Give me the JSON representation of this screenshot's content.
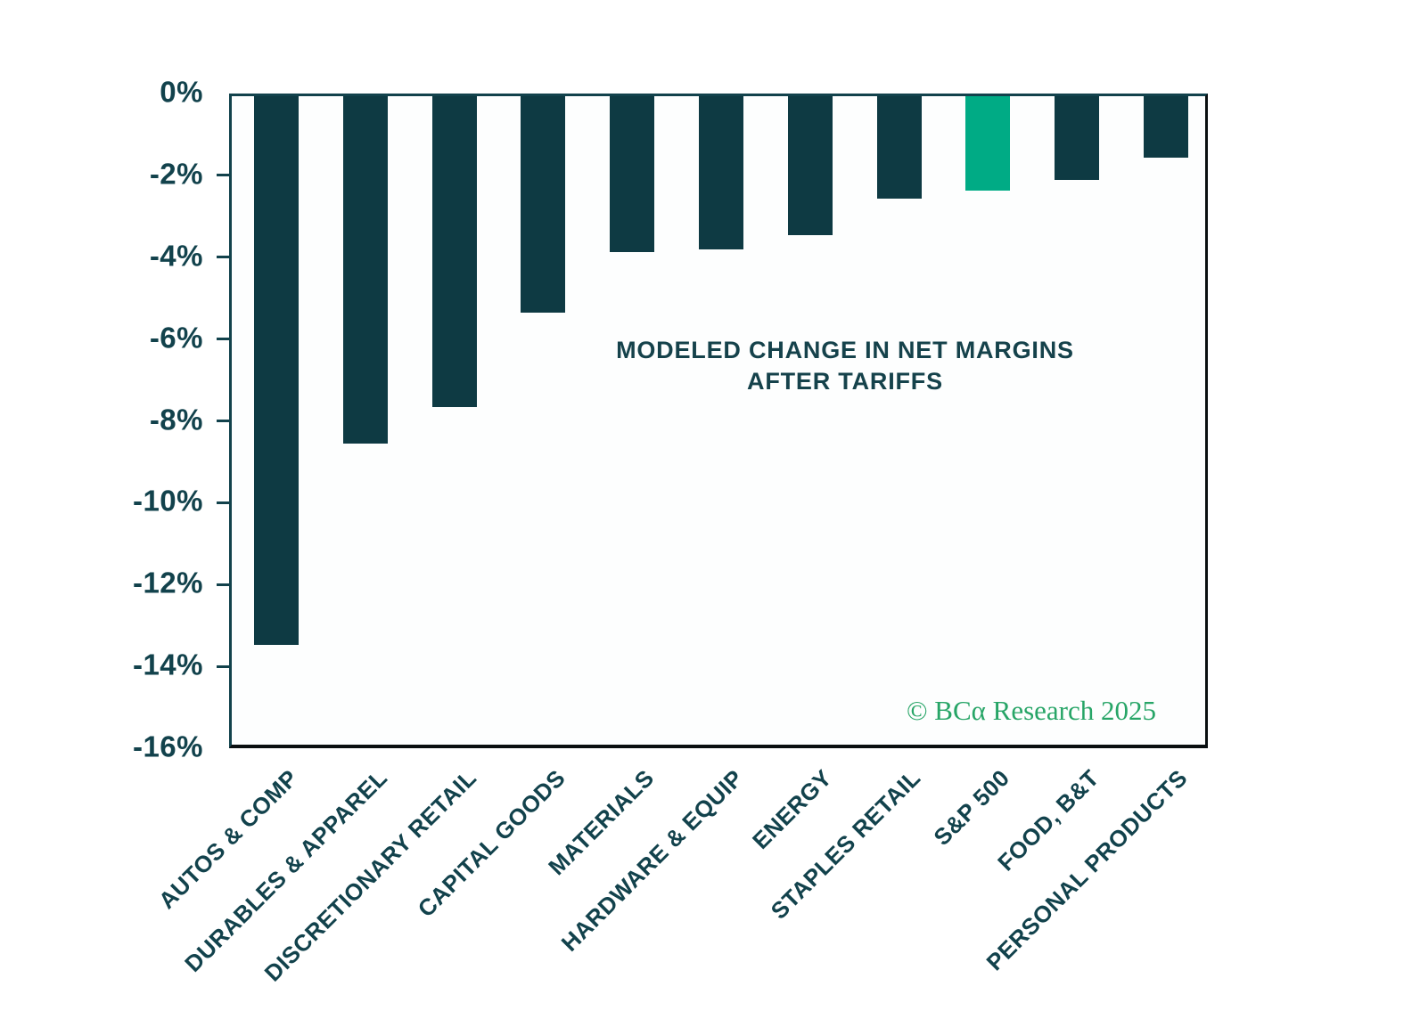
{
  "chart_data": {
    "type": "bar",
    "title_line1": "MODELED CHANGE IN NET MARGINS",
    "title_line2": "AFTER TARIFFS",
    "categories": [
      "AUTOS & COMP",
      "DURABLES & APPAREL",
      "DISCRETIONARY RETAIL",
      "CAPITAL GOODS",
      "MATERIALS",
      "HARDWARE & EQUIP",
      "ENERGY",
      "STAPLES RETAIL",
      "S&P 500",
      "FOOD, B&T",
      "PERSONAL PRODUCTS"
    ],
    "values": [
      -13.4,
      -8.5,
      -7.6,
      -5.3,
      -3.8,
      -3.75,
      -3.4,
      -2.5,
      -2.3,
      -2.05,
      -1.5
    ],
    "highlight_category": "S&P 500",
    "bar_color": "#0e3a43",
    "highlight_color": "#00ab85",
    "text_color": "#12424c",
    "ylim": [
      -16,
      0
    ],
    "ytick_step": 2,
    "ytick_labels": [
      "0%",
      "-2%",
      "-4%",
      "-6%",
      "-8%",
      "-10%",
      "-12%",
      "-14%",
      "-16%"
    ],
    "grid": false,
    "legend": "none",
    "xlabel": "",
    "ylabel": ""
  },
  "watermark": {
    "text": "© BCα Research 2025",
    "color": "#27a567"
  }
}
